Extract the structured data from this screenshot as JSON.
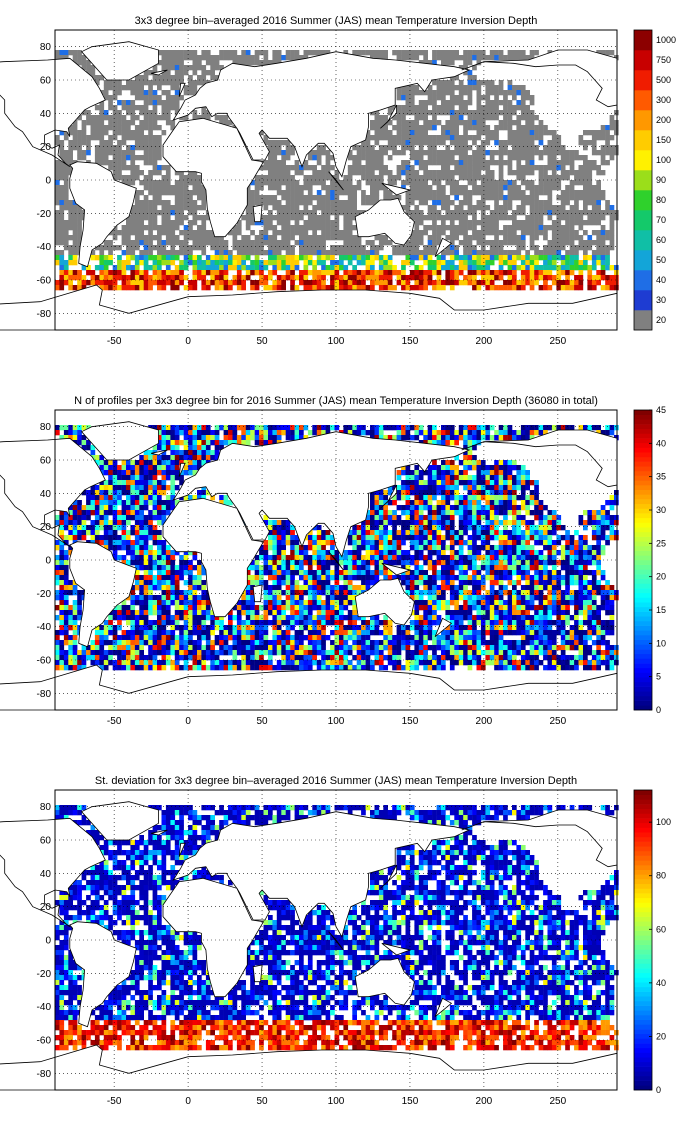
{
  "panels": [
    {
      "id": "depth",
      "title": "3x3 degree bin–averaged 2016 Summer (JAS) mean Temperature Inversion Depth",
      "colorbar": {
        "kind": "categorical",
        "labels": [
          "20",
          "30",
          "40",
          "50",
          "60",
          "70",
          "80",
          "90",
          "100",
          "150",
          "200",
          "300",
          "500",
          "750",
          "1000"
        ],
        "colors": [
          "#808080",
          "#1e3cd2",
          "#1f6ee6",
          "#13a5d8",
          "#10bfa6",
          "#14c96a",
          "#2fd12c",
          "#9bde1a",
          "#fff100",
          "#ffcc00",
          "#ff9800",
          "#ff5a00",
          "#f01c00",
          "#c80000",
          "#8c0000"
        ]
      },
      "chart_data": {
        "type": "heatmap",
        "xlim": [
          -90,
          290
        ],
        "ylim": [
          -90,
          90
        ],
        "xticks": [
          -50,
          0,
          50,
          100,
          150,
          200,
          250
        ],
        "yticks": [
          -80,
          -60,
          -40,
          -20,
          0,
          20,
          40,
          60,
          80
        ],
        "grid": true,
        "bin_size_deg": 3
      }
    },
    {
      "id": "count",
      "title": "N of profiles per 3x3 degree bin for 2016 Summer (JAS) mean Temperature Inversion Depth  (36080 in total)",
      "colorbar": {
        "kind": "continuous",
        "range": [
          0,
          45
        ],
        "ticks": [
          "0",
          "5",
          "10",
          "15",
          "20",
          "25",
          "30",
          "35",
          "40",
          "45"
        ],
        "colormap": "jet"
      },
      "chart_data": {
        "type": "heatmap",
        "xlim": [
          -90,
          290
        ],
        "ylim": [
          -90,
          90
        ],
        "xticks": [
          -50,
          0,
          50,
          100,
          150,
          200,
          250
        ],
        "yticks": [
          -80,
          -60,
          -40,
          -20,
          0,
          20,
          40,
          60,
          80
        ],
        "grid": true,
        "bin_size_deg": 3,
        "total_profiles": 36080
      }
    },
    {
      "id": "std",
      "title": "St. deviation for 3x3 degree bin–averaged 2016 Summer (JAS) mean Temperature Inversion Depth",
      "colorbar": {
        "kind": "continuous",
        "range": [
          0,
          112
        ],
        "ticks": [
          "0",
          "20",
          "40",
          "60",
          "80",
          "100"
        ],
        "colormap": "jet"
      },
      "chart_data": {
        "type": "heatmap",
        "xlim": [
          -90,
          290
        ],
        "ylim": [
          -90,
          90
        ],
        "xticks": [
          -50,
          0,
          50,
          100,
          150,
          200,
          250
        ],
        "yticks": [
          -80,
          -60,
          -40,
          -20,
          0,
          20,
          40,
          60,
          80
        ],
        "grid": true,
        "bin_size_deg": 3
      }
    }
  ]
}
